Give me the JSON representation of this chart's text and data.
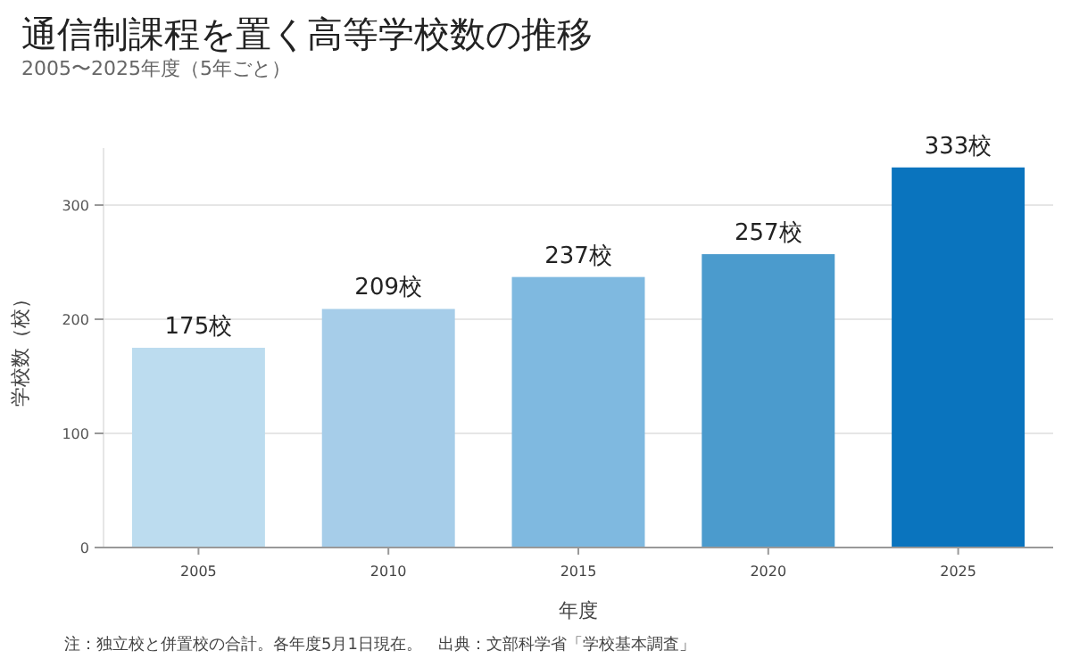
{
  "chart_data": {
    "type": "bar",
    "title": "通信制課程を置く高等学校数の推移",
    "subtitle": "2005〜2025年度（5年ごと）",
    "xlabel": "年度",
    "ylabel": "学校数（校）",
    "categories": [
      "2005",
      "2010",
      "2015",
      "2020",
      "2025"
    ],
    "values": [
      175,
      209,
      237,
      257,
      333
    ],
    "colors": [
      "#bcdcef",
      "#a6cde9",
      "#7fb9e0",
      "#4b9bcd",
      "#0a74be"
    ],
    "value_labels": [
      "175校",
      "209校",
      "237校",
      "257校",
      "333校"
    ],
    "ylim": [
      0,
      350
    ],
    "yticks": [
      0,
      100,
      200,
      300
    ],
    "grid": "y",
    "annotations": [
      "注：独立校と併置校の合計。各年度5月1日現在。　出典：文部科学省「学校基本調査」"
    ]
  }
}
